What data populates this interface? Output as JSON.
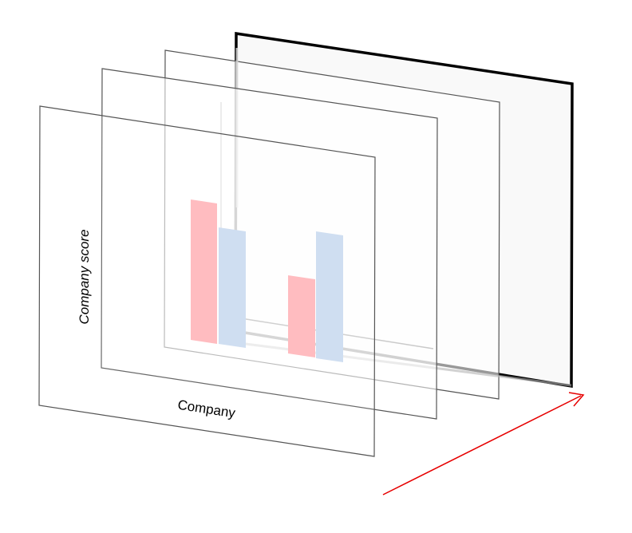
{
  "diagram": {
    "x_axis_label": "Company",
    "y_axis_label": "Company score",
    "layer_count": 4,
    "bar_colors": {
      "series_a": "#ffb3b8",
      "series_b": "#c9daef"
    },
    "arrow_color": "#e60000",
    "back_layer_stroke": "#000000",
    "back_layer_fill": "#f9f9f9"
  }
}
